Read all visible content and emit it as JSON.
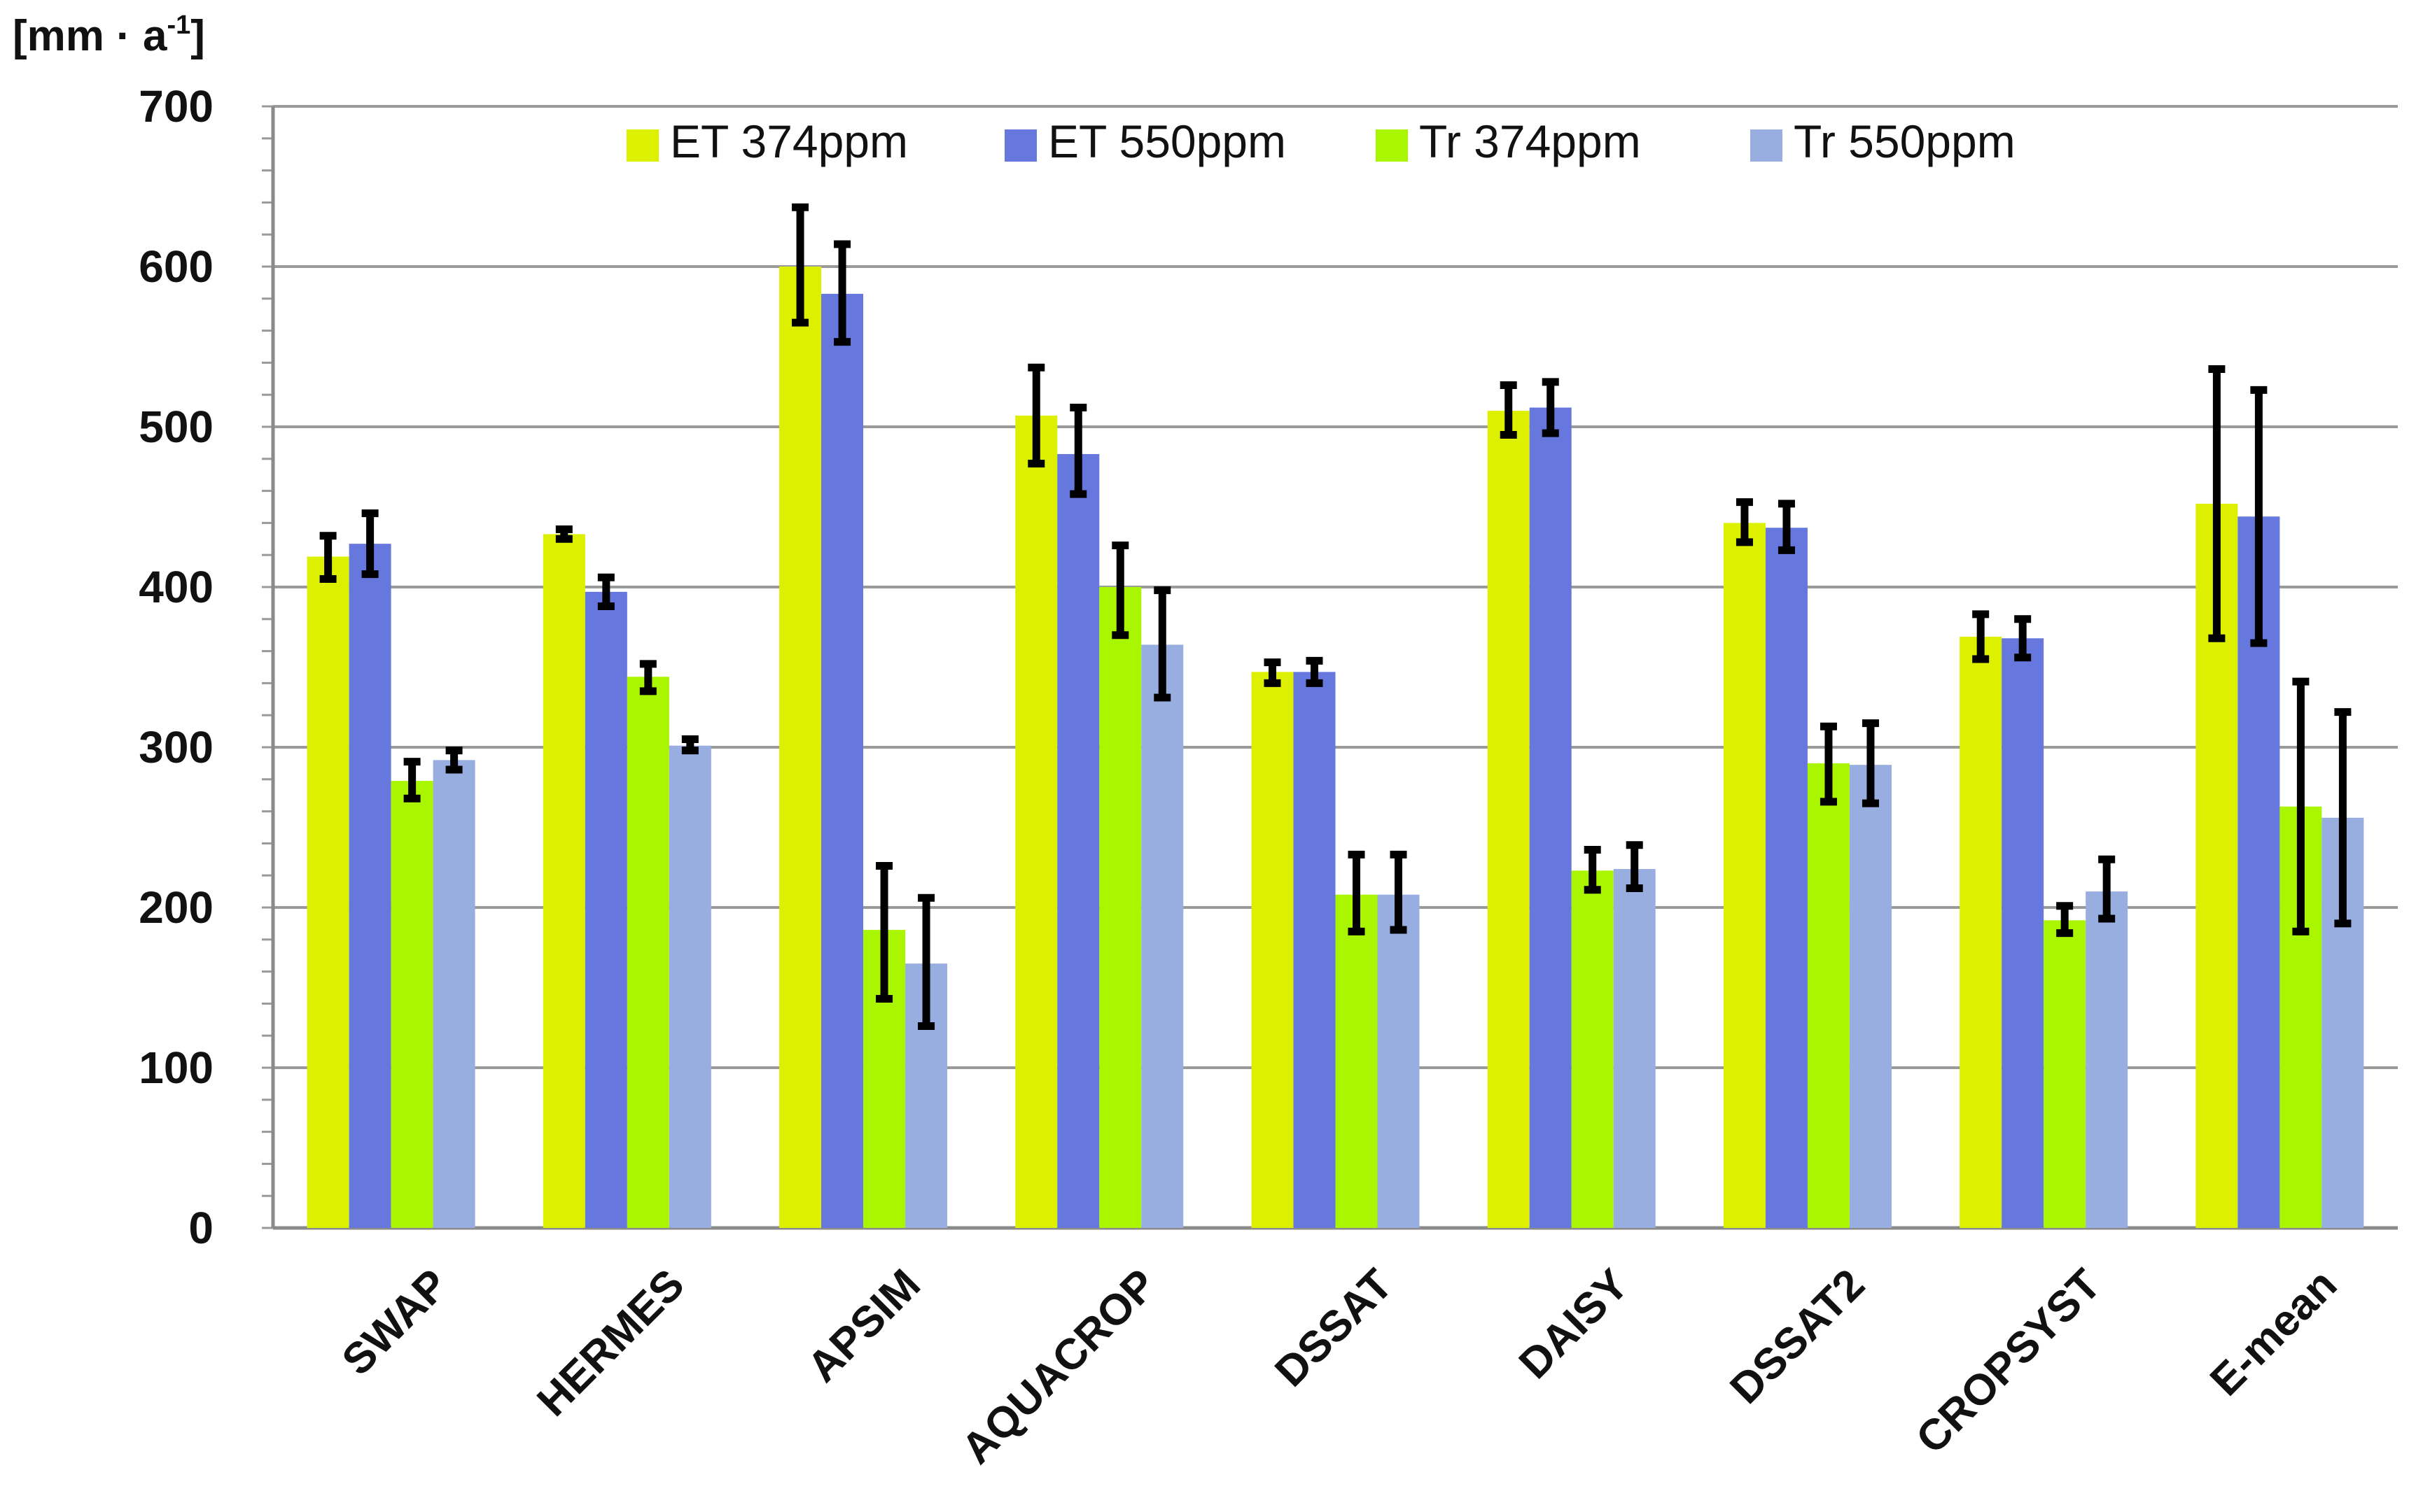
{
  "chart_data": {
    "type": "bar",
    "ylabel_unit": {
      "prefix": "[mm · a",
      "sup": "-1",
      "suffix": "]"
    },
    "ylim": [
      0,
      700
    ],
    "yticks": [
      0,
      100,
      200,
      300,
      400,
      500,
      600,
      700
    ],
    "grid": true,
    "legend_position": "top",
    "categories": [
      "SWAP",
      "HERMES",
      "APSIM",
      "AQUACROP",
      "DSSAT",
      "DAISY",
      "DSSAT2",
      "CROPSYST",
      "E-mean"
    ],
    "series": [
      {
        "name": "ET 374ppm",
        "color": "#DDF000",
        "values": [
          419,
          433,
          600,
          507,
          347,
          510,
          440,
          369,
          452
        ],
        "err_low": [
          405,
          430,
          565,
          477,
          340,
          495,
          428,
          355,
          368
        ],
        "err_high": [
          432,
          436,
          637,
          537,
          353,
          526,
          453,
          383,
          536
        ]
      },
      {
        "name": "ET 550ppm",
        "color": "#6677DD",
        "values": [
          427,
          397,
          583,
          483,
          347,
          512,
          437,
          368,
          444
        ],
        "err_low": [
          408,
          388,
          553,
          458,
          340,
          496,
          423,
          356,
          365
        ],
        "err_high": [
          446,
          406,
          614,
          512,
          354,
          528,
          452,
          380,
          523
        ]
      },
      {
        "name": "Tr 374ppm",
        "color": "#AAF500",
        "values": [
          279,
          344,
          186,
          400,
          208,
          223,
          290,
          192,
          263
        ],
        "err_low": [
          268,
          335,
          143,
          370,
          185,
          211,
          266,
          184,
          185
        ],
        "err_high": [
          291,
          352,
          226,
          426,
          233,
          236,
          313,
          201,
          341
        ]
      },
      {
        "name": "Tr 550ppm",
        "color": "#99AEE0",
        "values": [
          292,
          301,
          165,
          364,
          208,
          224,
          289,
          210,
          256
        ],
        "err_low": [
          286,
          298,
          126,
          331,
          186,
          212,
          265,
          193,
          190
        ],
        "err_high": [
          298,
          305,
          206,
          398,
          233,
          239,
          315,
          230,
          322
        ]
      }
    ]
  }
}
